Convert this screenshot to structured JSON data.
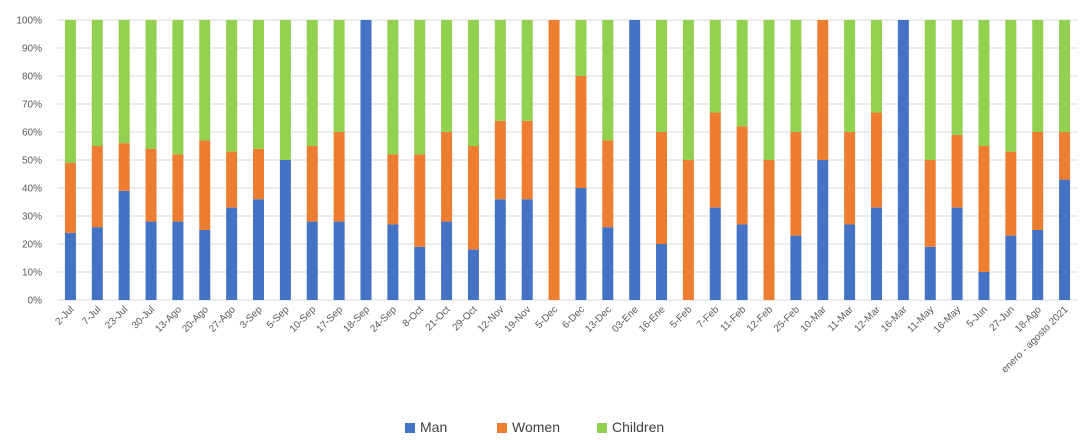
{
  "chart_data": {
    "type": "bar",
    "stacked": "percent",
    "categories": [
      "2-Jul",
      "7-Jul",
      "23-Jul",
      "30-Jul",
      "13-Ago",
      "20-Ago",
      "27-Ago",
      "3-Sep",
      "5-Sep",
      "10-Sep",
      "17-Sep",
      "18-Sep",
      "24-Sep",
      "8-Oct",
      "21-Oct",
      "29-Oct",
      "12-Nov",
      "19-Nov",
      "5-Dec",
      "6-Dec",
      "13-Dec",
      "03-Ene",
      "16-Ene",
      "5-Feb",
      "7-Feb",
      "11-Feb",
      "12-Feb",
      "25-Feb",
      "10-Mar",
      "11-Mar",
      "12-Mar",
      "16-Mar",
      "11-May",
      "16-May",
      "5-Jun",
      "27-Jun",
      "18-Ago",
      "enero - agosto 2021"
    ],
    "series": [
      {
        "name": "Man",
        "color": "#4472C4",
        "values": [
          24,
          26,
          39,
          28,
          28,
          25,
          33,
          36,
          50,
          28,
          28,
          100,
          27,
          19,
          28,
          18,
          36,
          36,
          0,
          40,
          26,
          100,
          20,
          0,
          33,
          27,
          0,
          23,
          50,
          27,
          33,
          100,
          19,
          33,
          10,
          23,
          25,
          43
        ]
      },
      {
        "name": "Women",
        "color": "#ED7D31",
        "values": [
          25,
          29,
          17,
          26,
          24,
          32,
          20,
          18,
          0,
          27,
          32,
          0,
          25,
          33,
          32,
          37,
          28,
          28,
          100,
          40,
          31,
          0,
          40,
          50,
          34,
          35,
          50,
          37,
          50,
          33,
          34,
          0,
          31,
          26,
          45,
          30,
          35,
          17
        ]
      },
      {
        "name": "Children",
        "color": "#92D050",
        "values": [
          51,
          45,
          44,
          46,
          48,
          43,
          47,
          46,
          50,
          45,
          40,
          0,
          48,
          48,
          40,
          45,
          36,
          36,
          0,
          20,
          43,
          0,
          40,
          50,
          33,
          38,
          50,
          40,
          0,
          40,
          33,
          0,
          50,
          41,
          45,
          47,
          40,
          40
        ]
      }
    ],
    "ylim": [
      0,
      100
    ],
    "ytick_labels": [
      "0%",
      "10%",
      "20%",
      "30%",
      "40%",
      "50%",
      "60%",
      "70%",
      "80%",
      "90%",
      "100%"
    ],
    "grid": true,
    "legend": "bottom-center"
  }
}
